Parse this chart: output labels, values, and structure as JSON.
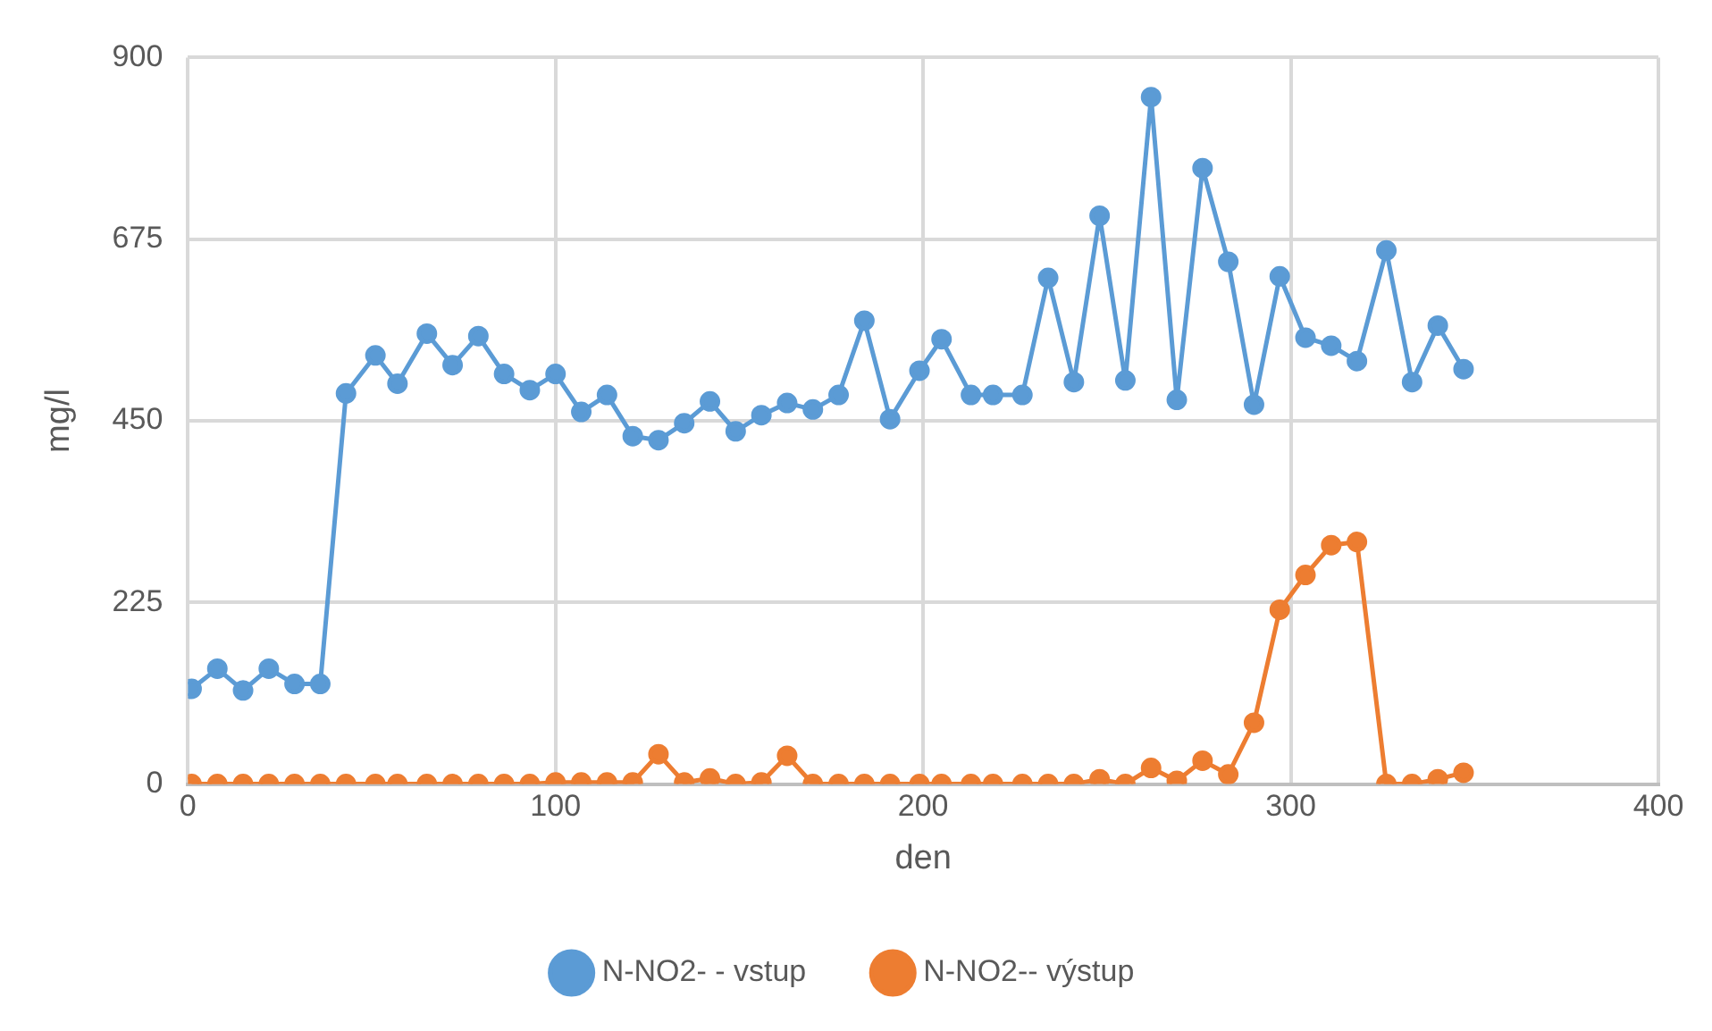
{
  "chart_data": {
    "type": "line",
    "xlabel": "den",
    "ylabel": "mg/l",
    "x": [
      1,
      8,
      15,
      22,
      29,
      36,
      43,
      51,
      57,
      65,
      72,
      79,
      86,
      93,
      100,
      107,
      114,
      121,
      128,
      135,
      142,
      149,
      156,
      163,
      170,
      177,
      184,
      191,
      199,
      205,
      213,
      219,
      227,
      234,
      241,
      248,
      255,
      262,
      269,
      276,
      283,
      290,
      297,
      304,
      311,
      318,
      326,
      333,
      340,
      347
    ],
    "series": [
      {
        "name": "N-NO2- - vstup",
        "color": "#5b9bd5",
        "values": [
          118,
          143,
          116,
          143,
          124,
          124,
          484,
          531,
          496,
          558,
          519,
          555,
          508,
          488,
          508,
          461,
          482,
          431,
          426,
          447,
          474,
          437,
          457,
          472,
          464,
          482,
          574,
          452,
          512,
          551,
          482,
          482,
          482,
          627,
          498,
          704,
          500,
          851,
          476,
          763,
          647,
          470,
          629,
          553,
          543,
          524,
          661,
          498,
          568,
          514
        ]
      },
      {
        "name": "N-NO2-- výstup",
        "color": "#ed7d31",
        "values": [
          0,
          0,
          0,
          0,
          0,
          0,
          0,
          0,
          0,
          0,
          0,
          0,
          0,
          0,
          2,
          2,
          2,
          2,
          37,
          2,
          7,
          0,
          2,
          35,
          0,
          0,
          0,
          0,
          0,
          0,
          0,
          0,
          0,
          0,
          0,
          6,
          0,
          20,
          4,
          29,
          12,
          76,
          216,
          259,
          296,
          300,
          0,
          0,
          6,
          14
        ]
      }
    ],
    "xlim": [
      0,
      400
    ],
    "xticks": [
      0,
      100,
      200,
      300,
      400
    ],
    "ylim": [
      0,
      900
    ],
    "yticks": [
      0,
      225,
      450,
      675,
      900
    ],
    "grid": true,
    "legend": "bottom",
    "marker": "circle",
    "line_style": "solid"
  }
}
